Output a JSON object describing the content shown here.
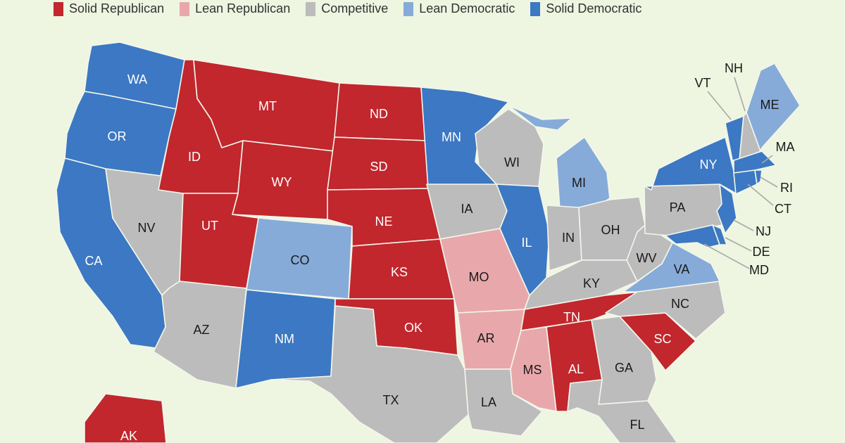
{
  "legend": [
    {
      "key": "solid_r",
      "label": "Solid Republican"
    },
    {
      "key": "lean_r",
      "label": "Lean Republican"
    },
    {
      "key": "comp",
      "label": "Competitive"
    },
    {
      "key": "lean_d",
      "label": "Lean Democratic"
    },
    {
      "key": "solid_d",
      "label": "Solid Democratic"
    }
  ],
  "colors": {
    "solid_r": "#c1272d",
    "lean_r": "#e8a8ab",
    "comp": "#bcbcbc",
    "lean_d": "#86abd9",
    "solid_d": "#3c78c3",
    "background": "#eef5e0"
  },
  "states": [
    {
      "code": "WA",
      "rating": "solid_d"
    },
    {
      "code": "OR",
      "rating": "solid_d"
    },
    {
      "code": "CA",
      "rating": "solid_d"
    },
    {
      "code": "NV",
      "rating": "comp"
    },
    {
      "code": "ID",
      "rating": "solid_r"
    },
    {
      "code": "MT",
      "rating": "solid_r"
    },
    {
      "code": "WY",
      "rating": "solid_r"
    },
    {
      "code": "UT",
      "rating": "solid_r"
    },
    {
      "code": "AZ",
      "rating": "comp"
    },
    {
      "code": "CO",
      "rating": "lean_d"
    },
    {
      "code": "NM",
      "rating": "solid_d"
    },
    {
      "code": "ND",
      "rating": "solid_r"
    },
    {
      "code": "SD",
      "rating": "solid_r"
    },
    {
      "code": "NE",
      "rating": "solid_r"
    },
    {
      "code": "KS",
      "rating": "solid_r"
    },
    {
      "code": "OK",
      "rating": "solid_r"
    },
    {
      "code": "TX",
      "rating": "comp"
    },
    {
      "code": "MN",
      "rating": "solid_d"
    },
    {
      "code": "IA",
      "rating": "comp"
    },
    {
      "code": "MO",
      "rating": "lean_r"
    },
    {
      "code": "AR",
      "rating": "lean_r"
    },
    {
      "code": "LA",
      "rating": "comp"
    },
    {
      "code": "WI",
      "rating": "comp"
    },
    {
      "code": "IL",
      "rating": "solid_d"
    },
    {
      "code": "MI",
      "rating": "lean_d"
    },
    {
      "code": "IN",
      "rating": "comp"
    },
    {
      "code": "OH",
      "rating": "comp"
    },
    {
      "code": "KY",
      "rating": "comp"
    },
    {
      "code": "TN",
      "rating": "solid_r"
    },
    {
      "code": "MS",
      "rating": "lean_r"
    },
    {
      "code": "AL",
      "rating": "solid_r"
    },
    {
      "code": "GA",
      "rating": "comp"
    },
    {
      "code": "FL",
      "rating": "comp"
    },
    {
      "code": "SC",
      "rating": "solid_r"
    },
    {
      "code": "NC",
      "rating": "comp"
    },
    {
      "code": "VA",
      "rating": "lean_d"
    },
    {
      "code": "WV",
      "rating": "comp"
    },
    {
      "code": "PA",
      "rating": "comp"
    },
    {
      "code": "NY",
      "rating": "solid_d"
    },
    {
      "code": "VT",
      "rating": "solid_d"
    },
    {
      "code": "NH",
      "rating": "comp"
    },
    {
      "code": "ME",
      "rating": "lean_d"
    },
    {
      "code": "MA",
      "rating": "solid_d"
    },
    {
      "code": "CT",
      "rating": "solid_d"
    },
    {
      "code": "RI",
      "rating": "solid_d"
    },
    {
      "code": "NJ",
      "rating": "solid_d"
    },
    {
      "code": "DE",
      "rating": "solid_d"
    },
    {
      "code": "MD",
      "rating": "solid_d"
    },
    {
      "code": "AK",
      "rating": "solid_r"
    }
  ]
}
